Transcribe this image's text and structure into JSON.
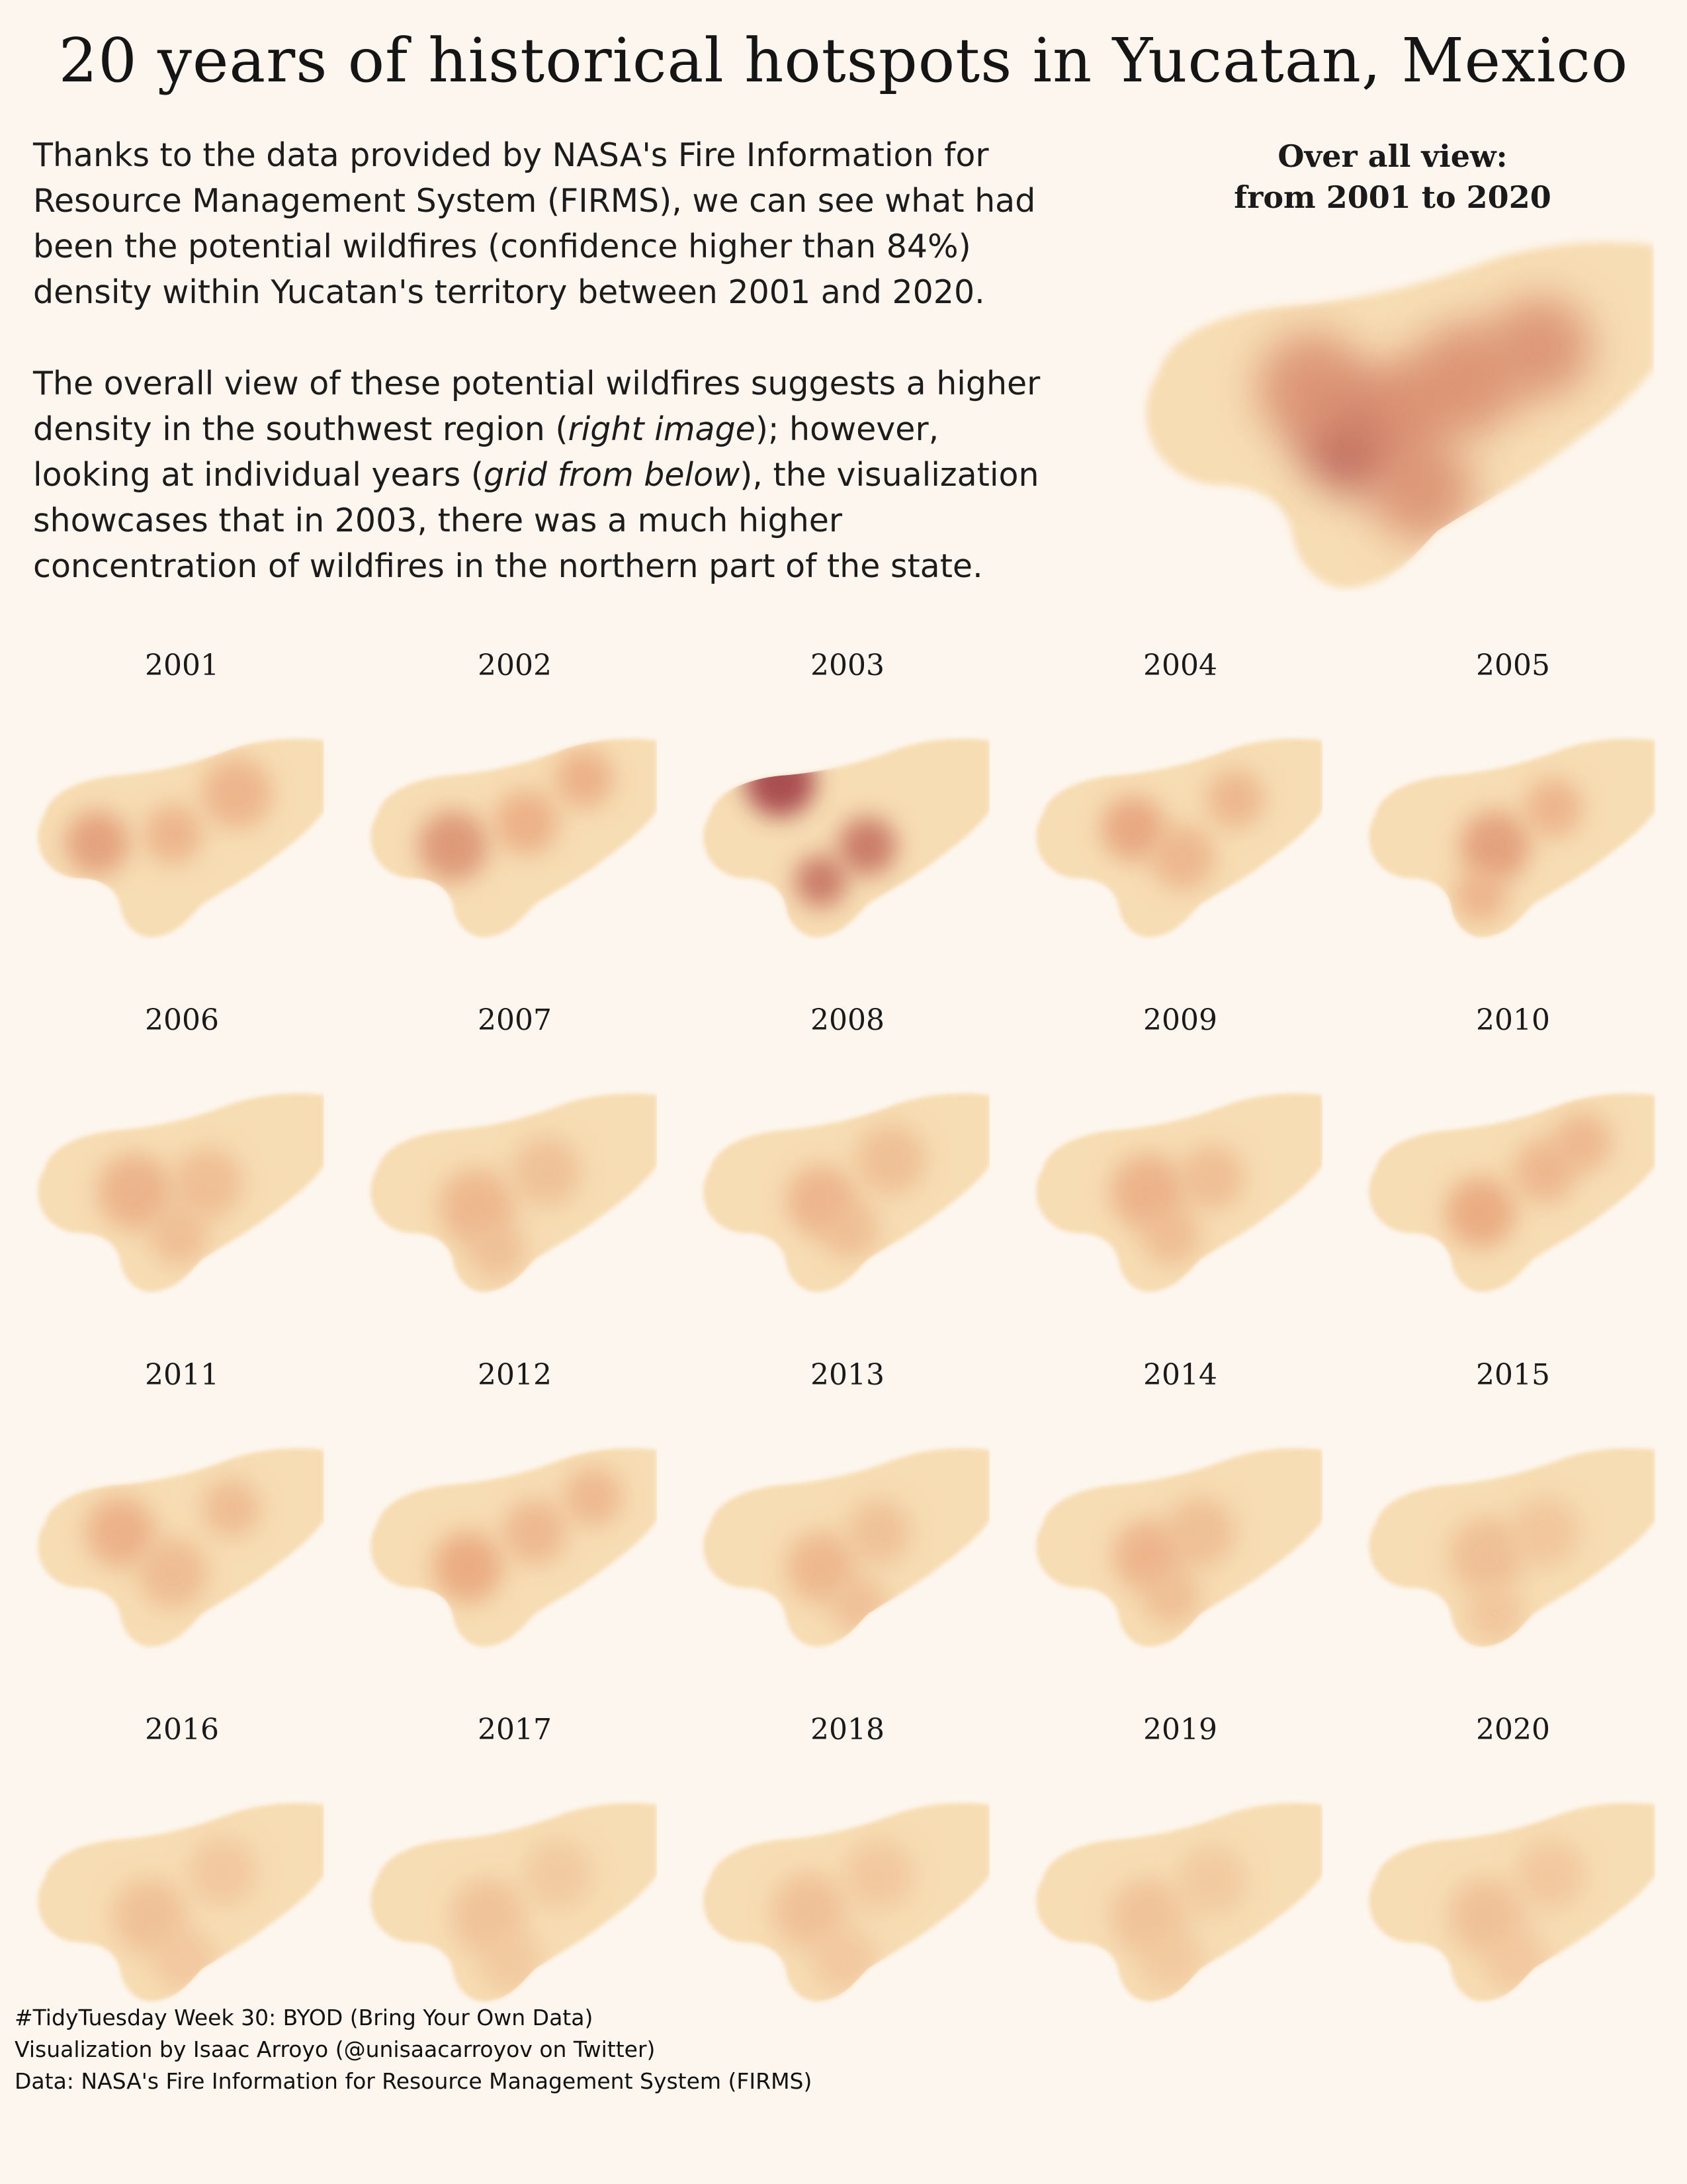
{
  "title": "20 years of historical hotspots in Yucatan, Mexico",
  "intro": {
    "p1": "Thanks to the data provided by NASA's Fire Information for Resource Management System (FIRMS), we can see what had been the potential wildfires (confidence higher than 84%) density within Yucatan's territory between 2001 and 2020.",
    "p2_a": "The overall view of these potential wildfires suggests a higher density in the southwest region (",
    "p2_em1": "right image",
    "p2_b": "); however, looking at individual years (",
    "p2_em2": "grid from below",
    "p2_c": "), the visualization showcases that in 2003, there was a much higher concentration of wildfires in the northern part of the state."
  },
  "overall": {
    "label_line1": "Over all view:",
    "label_line2": "from 2001 to 2020"
  },
  "colors": {
    "background": "#fdf6ee",
    "density_low": "#f7ddb3",
    "density_mid": "#e8a47c",
    "density_high": "#9c3640"
  },
  "chart_data": {
    "type": "heatmap",
    "title": "",
    "xlabel": "",
    "ylabel": "",
    "grid": false,
    "legend": "none",
    "years": [
      "2001",
      "2002",
      "2003",
      "2004",
      "2005",
      "2006",
      "2007",
      "2008",
      "2009",
      "2010",
      "2011",
      "2012",
      "2013",
      "2014",
      "2015",
      "2016",
      "2017",
      "2018",
      "2019",
      "2020"
    ],
    "peak_density": [
      0.55,
      0.6,
      1.0,
      0.52,
      0.55,
      0.42,
      0.38,
      0.4,
      0.42,
      0.5,
      0.45,
      0.5,
      0.38,
      0.4,
      0.3,
      0.28,
      0.26,
      0.28,
      0.26,
      0.28
    ],
    "overall_peak_density": 0.8
  },
  "caption": {
    "line1": "#TidyTuesday Week 30: BYOD (Bring Your Own Data)",
    "line2": "Visualization by Isaac Arroyo (@unisaacarroyov on Twitter)",
    "line3": "Data: NASA's Fire Information for Resource Management System (FIRMS)"
  }
}
